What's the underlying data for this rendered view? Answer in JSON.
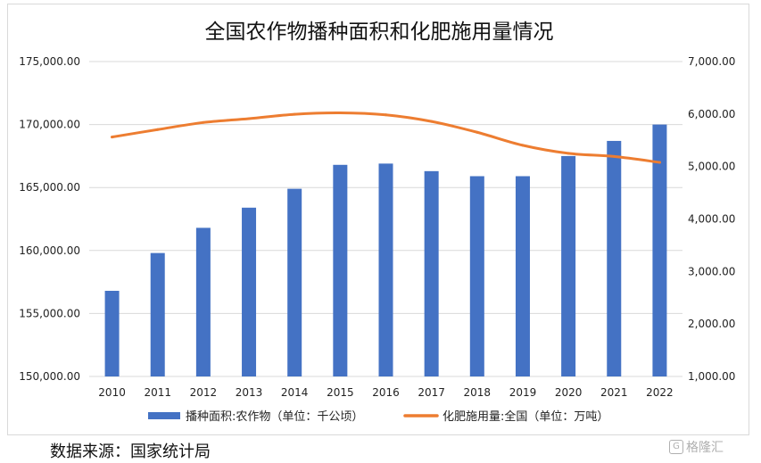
{
  "chart_data": {
    "type": "bar+line",
    "title": "全国农作物播种面积和化肥施用量情况",
    "categories": [
      "2010",
      "2011",
      "2012",
      "2013",
      "2014",
      "2015",
      "2016",
      "2017",
      "2018",
      "2019",
      "2020",
      "2021",
      "2022"
    ],
    "series": [
      {
        "name": "播种面积:农作物（单位：千公顷）",
        "type": "bar",
        "axis": "left",
        "color": "#4472C4",
        "values": [
          156800,
          159800,
          161800,
          163400,
          164900,
          166800,
          166900,
          166300,
          165900,
          165900,
          167500,
          168700,
          170000
        ]
      },
      {
        "name": "化肥施用量:全国（单位：万吨）",
        "type": "line",
        "axis": "right",
        "color": "#ED7D31",
        "values": [
          5562,
          5704,
          5839,
          5912,
          5996,
          6023,
          5984,
          5859,
          5653,
          5404,
          5251,
          5191,
          5079
        ]
      }
    ],
    "y_left": {
      "ylim": [
        150000,
        175000
      ],
      "ticks": [
        "150,000.00",
        "155,000.00",
        "160,000.00",
        "165,000.00",
        "170,000.00",
        "175,000.00"
      ]
    },
    "y_right": {
      "ylim": [
        1000,
        7000
      ],
      "ticks": [
        "1,000.00",
        "2,000.00",
        "3,000.00",
        "4,000.00",
        "5,000.00",
        "6,000.00",
        "7,000.00"
      ]
    },
    "grid": true,
    "legend_position": "bottom"
  },
  "source": "数据来源：国家统计局",
  "watermark": "格隆汇"
}
